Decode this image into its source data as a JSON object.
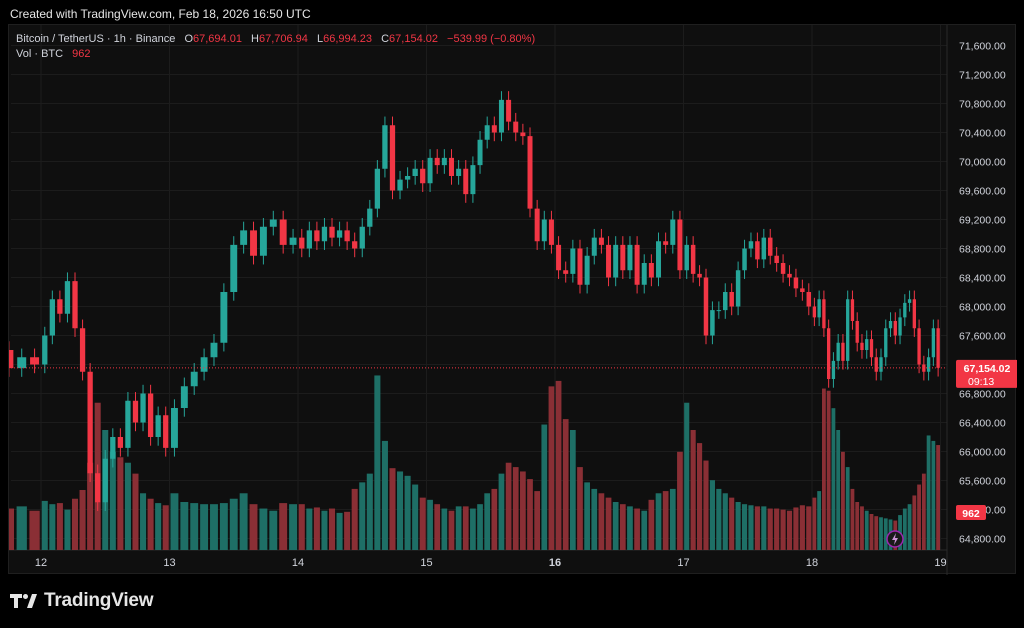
{
  "header": {
    "created": "Created with TradingView.com, Feb 18, 2026 16:50 UTC"
  },
  "legend": {
    "symbol": "Bitcoin / TetherUS · 1h · Binance",
    "o_label": "O",
    "o_value": "67,694.01",
    "h_label": "H",
    "h_value": "67,706.94",
    "l_label": "L",
    "l_value": "66,994.23",
    "c_label": "C",
    "c_value": "67,154.02",
    "change": "−539.99 (−0.80%)",
    "vol_label": "Vol · BTC",
    "vol_value": "962"
  },
  "price_label": {
    "price": "67,154.02",
    "countdown": "09:13"
  },
  "volume_label": "962",
  "footer": {
    "logo_text": "TradingView"
  },
  "colors": {
    "up": "#26a69a",
    "down": "#f23645",
    "up_vol": "#1e6f66",
    "down_vol": "#8a2f35"
  },
  "chart_data": {
    "type": "candlestick",
    "y_ticks": [
      64800,
      65200,
      65600,
      66000,
      66400,
      66800,
      67200,
      67600,
      68000,
      68400,
      68800,
      69200,
      69600,
      70000,
      70400,
      70800,
      71200,
      71600
    ],
    "ylim": [
      64600,
      71800
    ],
    "current_price": 67154.02,
    "x_ticks": [
      {
        "label": "12",
        "day": 12,
        "bold": false
      },
      {
        "label": "13",
        "day": 13,
        "bold": false
      },
      {
        "label": "14",
        "day": 14,
        "bold": false
      },
      {
        "label": "15",
        "day": 15,
        "bold": false
      },
      {
        "label": "16",
        "day": 16,
        "bold": true
      },
      {
        "label": "17",
        "day": 17,
        "bold": false
      },
      {
        "label": "18",
        "day": 18,
        "bold": false
      },
      {
        "label": "19",
        "day": 19,
        "bold": false
      }
    ],
    "days": [
      {
        "date": "Feb 11",
        "segments": [
          [
            67000,
            67700
          ],
          [
            67700,
            67500
          ],
          [
            67500,
            68050
          ],
          [
            68050,
            67600
          ],
          [
            67600,
            67150
          ],
          [
            67150,
            67800
          ],
          [
            67800,
            67400
          ],
          [
            67400,
            67150
          ],
          [
            67150,
            67300
          ],
          [
            67300,
            67200
          ]
        ]
      },
      {
        "date": "Feb 12",
        "segments": [
          [
            67200,
            67600
          ],
          [
            67600,
            68100
          ],
          [
            68100,
            67900
          ],
          [
            67900,
            68350
          ],
          [
            68350,
            67700
          ],
          [
            67700,
            67100
          ],
          [
            67100,
            65700
          ],
          [
            65700,
            65300
          ],
          [
            65300,
            65900
          ],
          [
            65900,
            66200
          ],
          [
            66200,
            66050
          ],
          [
            66050,
            66700
          ],
          [
            66700,
            66400
          ],
          [
            66400,
            66800
          ],
          [
            66800,
            66200
          ],
          [
            66200,
            66500
          ],
          [
            66500,
            66050
          ]
        ]
      },
      {
        "date": "Feb 13",
        "segments": [
          [
            66050,
            66600
          ],
          [
            66600,
            66900
          ],
          [
            66900,
            67100
          ],
          [
            67100,
            67300
          ],
          [
            67300,
            67500
          ],
          [
            67500,
            68200
          ],
          [
            68200,
            68850
          ],
          [
            68850,
            69050
          ],
          [
            69050,
            68700
          ],
          [
            68700,
            69100
          ],
          [
            69100,
            69200
          ],
          [
            69200,
            68850
          ],
          [
            68850,
            68950
          ]
        ]
      },
      {
        "date": "Feb 14",
        "segments": [
          [
            68950,
            68800
          ],
          [
            68800,
            69050
          ],
          [
            69050,
            68900
          ],
          [
            68900,
            69100
          ],
          [
            69100,
            68950
          ],
          [
            68950,
            69050
          ],
          [
            69050,
            68900
          ],
          [
            68900,
            68800
          ],
          [
            68800,
            69100
          ],
          [
            69100,
            69350
          ],
          [
            69350,
            69900
          ],
          [
            69900,
            70500
          ],
          [
            70500,
            69600
          ],
          [
            69600,
            69750
          ],
          [
            69750,
            69800
          ],
          [
            69800,
            69900
          ],
          [
            69900,
            69700
          ]
        ]
      },
      {
        "date": "Feb 15",
        "segments": [
          [
            69700,
            70050
          ],
          [
            70050,
            69950
          ],
          [
            69950,
            70050
          ],
          [
            70050,
            69800
          ],
          [
            69800,
            69900
          ],
          [
            69900,
            69550
          ],
          [
            69550,
            69950
          ],
          [
            69950,
            70300
          ],
          [
            70300,
            70500
          ],
          [
            70500,
            70400
          ],
          [
            70400,
            70850
          ],
          [
            70850,
            70550
          ],
          [
            70550,
            70400
          ],
          [
            70400,
            70350
          ],
          [
            70350,
            69350
          ],
          [
            69350,
            68900
          ],
          [
            68900,
            69200
          ],
          [
            69200,
            68850
          ]
        ]
      },
      {
        "date": "Feb 16",
        "segments": [
          [
            68850,
            68500
          ],
          [
            68500,
            68450
          ],
          [
            68450,
            68800
          ],
          [
            68800,
            68300
          ],
          [
            68300,
            68700
          ],
          [
            68700,
            68950
          ],
          [
            68950,
            68850
          ],
          [
            68850,
            68400
          ],
          [
            68400,
            68850
          ],
          [
            68850,
            68500
          ],
          [
            68500,
            68850
          ],
          [
            68850,
            68300
          ],
          [
            68300,
            68600
          ],
          [
            68600,
            68400
          ],
          [
            68400,
            68900
          ],
          [
            68900,
            68850
          ],
          [
            68850,
            69200
          ],
          [
            69200,
            68500
          ]
        ]
      },
      {
        "date": "Feb 17",
        "segments": [
          [
            68500,
            68850
          ],
          [
            68850,
            68450
          ],
          [
            68450,
            68400
          ],
          [
            68400,
            67600
          ],
          [
            67600,
            67950
          ],
          [
            67950,
            67950
          ],
          [
            67950,
            68200
          ],
          [
            68200,
            68000
          ],
          [
            68000,
            68500
          ],
          [
            68500,
            68800
          ],
          [
            68800,
            68900
          ],
          [
            68900,
            68650
          ],
          [
            68650,
            68950
          ],
          [
            68950,
            68700
          ],
          [
            68700,
            68600
          ],
          [
            68600,
            68450
          ],
          [
            68450,
            68400
          ],
          [
            68400,
            68250
          ],
          [
            68250,
            68200
          ],
          [
            68200,
            68000
          ]
        ]
      },
      {
        "date": "Feb 18",
        "segments": [
          [
            68000,
            67850
          ],
          [
            67850,
            68100
          ],
          [
            68100,
            67700
          ],
          [
            67700,
            67000
          ],
          [
            67000,
            67250
          ],
          [
            67250,
            67500
          ],
          [
            67500,
            67250
          ],
          [
            67250,
            68100
          ],
          [
            68100,
            67800
          ],
          [
            67800,
            67500
          ],
          [
            67500,
            67400
          ],
          [
            67400,
            67550
          ],
          [
            67550,
            67300
          ],
          [
            67300,
            67100
          ],
          [
            67100,
            67300
          ],
          [
            67300,
            67700
          ],
          [
            67700,
            67800
          ],
          [
            67800,
            67600
          ],
          [
            67600,
            67850
          ],
          [
            67850,
            68050
          ],
          [
            68050,
            68100
          ],
          [
            68100,
            67700
          ],
          [
            67700,
            67200
          ],
          [
            67200,
            67100
          ],
          [
            67100,
            67300
          ],
          [
            67300,
            67700
          ],
          [
            67700,
            67154.02
          ]
        ]
      }
    ],
    "volume": {
      "days": [
        {
          "date": "Feb 11",
          "values": [
            520,
            420,
            380,
            430,
            370,
            400,
            350,
            380,
            400,
            360
          ]
        },
        {
          "date": "Feb 12",
          "values": [
            450,
            420,
            430,
            370,
            470,
            550,
            800,
            1350,
            1100,
            900,
            850,
            800,
            700,
            520,
            470,
            430,
            410
          ]
        },
        {
          "date": "Feb 13",
          "values": [
            520,
            440,
            430,
            420,
            420,
            430,
            470,
            520,
            420,
            380,
            360,
            430,
            420
          ]
        },
        {
          "date": "Feb 14",
          "values": [
            420,
            380,
            390,
            360,
            380,
            340,
            350,
            560,
            620,
            700,
            1600,
            1000,
            750,
            720,
            680,
            600,
            480
          ]
        },
        {
          "date": "Feb 15",
          "values": [
            460,
            420,
            380,
            360,
            400,
            400,
            380,
            420,
            520,
            560,
            700,
            800,
            760,
            720,
            650,
            540,
            1150,
            1500
          ]
        },
        {
          "date": "Feb 16",
          "values": [
            1550,
            1200,
            1100,
            760,
            620,
            560,
            520,
            480,
            440,
            420,
            400,
            380,
            360,
            460,
            520,
            540,
            560,
            900
          ]
        },
        {
          "date": "Feb 17",
          "values": [
            1350,
            1100,
            980,
            820,
            640,
            560,
            520,
            480,
            440,
            420,
            410,
            400,
            400,
            380,
            380,
            370,
            360,
            390,
            410,
            400
          ]
        },
        {
          "date": "Feb 18",
          "values": [
            480,
            540,
            1480,
            1460,
            1300,
            1100,
            900,
            760,
            560,
            440,
            400,
            360,
            330,
            310,
            300,
            290,
            280,
            270,
            320,
            380,
            420,
            500,
            600,
            700,
            1050,
            1000,
            962
          ]
        }
      ],
      "vmax": 2200
    }
  }
}
